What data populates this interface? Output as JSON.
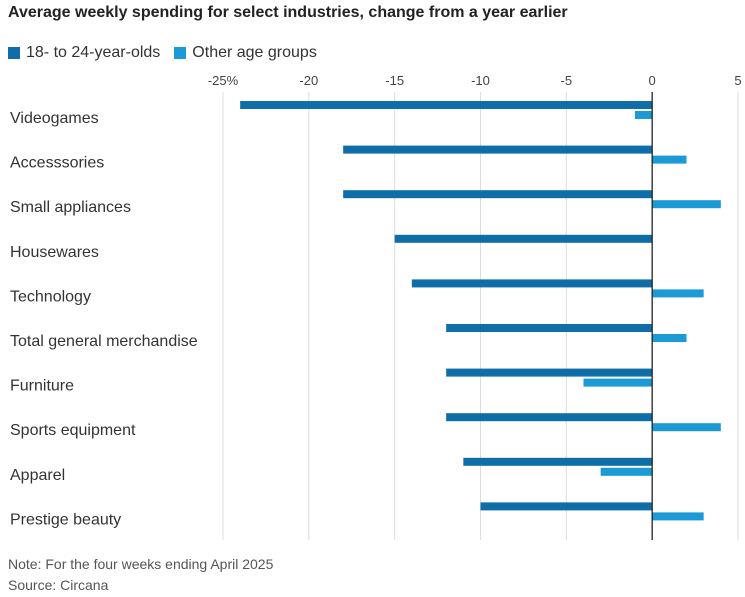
{
  "chart_data": {
    "type": "bar",
    "orientation": "horizontal",
    "title": "Average weekly spending for select industries, change from a year earlier",
    "categories": [
      "Videogames",
      "Accesssories",
      "Small appliances",
      "Housewares",
      "Technology",
      "Total general merchandise",
      "Furniture",
      "Sports equipment",
      "Apparel",
      "Prestige beauty"
    ],
    "series": [
      {
        "name": "18- to 24-year-olds",
        "color": "#0f6ea8",
        "values": [
          -24,
          -18,
          -18,
          -15,
          -14,
          -12,
          -12,
          -12,
          -11,
          -10
        ]
      },
      {
        "name": "Other age groups",
        "color": "#1b9ad6",
        "values": [
          -1,
          2,
          4,
          null,
          3,
          2,
          -4,
          4,
          -3,
          3
        ]
      }
    ],
    "xlim": [
      -25,
      5
    ],
    "xticks": [
      -25,
      -20,
      -15,
      -10,
      -5,
      0,
      5
    ],
    "xtick_labels": [
      "-25%",
      "-20",
      "-15",
      "-10",
      "-5",
      "0",
      "5"
    ],
    "grid": true,
    "legend_position": "top-left",
    "note": "Note: For the four weeks ending April 2025",
    "source": "Source: Circana"
  }
}
